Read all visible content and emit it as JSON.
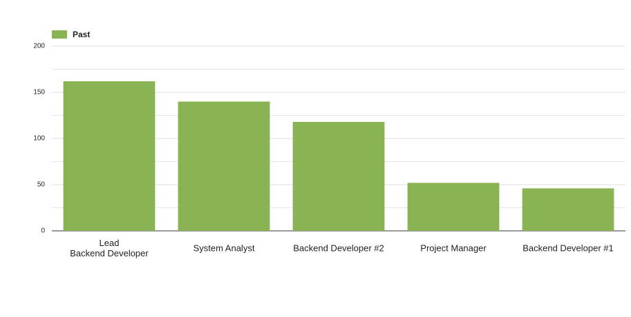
{
  "chart_data": {
    "type": "bar",
    "legend": "top-left",
    "categories": [
      "Lead\nBackend Developer",
      "System Analyst",
      "Backend Developer #2",
      "Project Manager",
      "Backend Developer #1"
    ],
    "series": [
      {
        "name": "Past",
        "color": "#8ab353",
        "values": [
          162,
          140,
          118,
          52,
          46
        ]
      }
    ],
    "ylim": [
      0,
      200
    ],
    "yticks": [
      0,
      50,
      100,
      150,
      200
    ],
    "minor_yticks": [
      25,
      75,
      125,
      175
    ],
    "grid": true
  }
}
